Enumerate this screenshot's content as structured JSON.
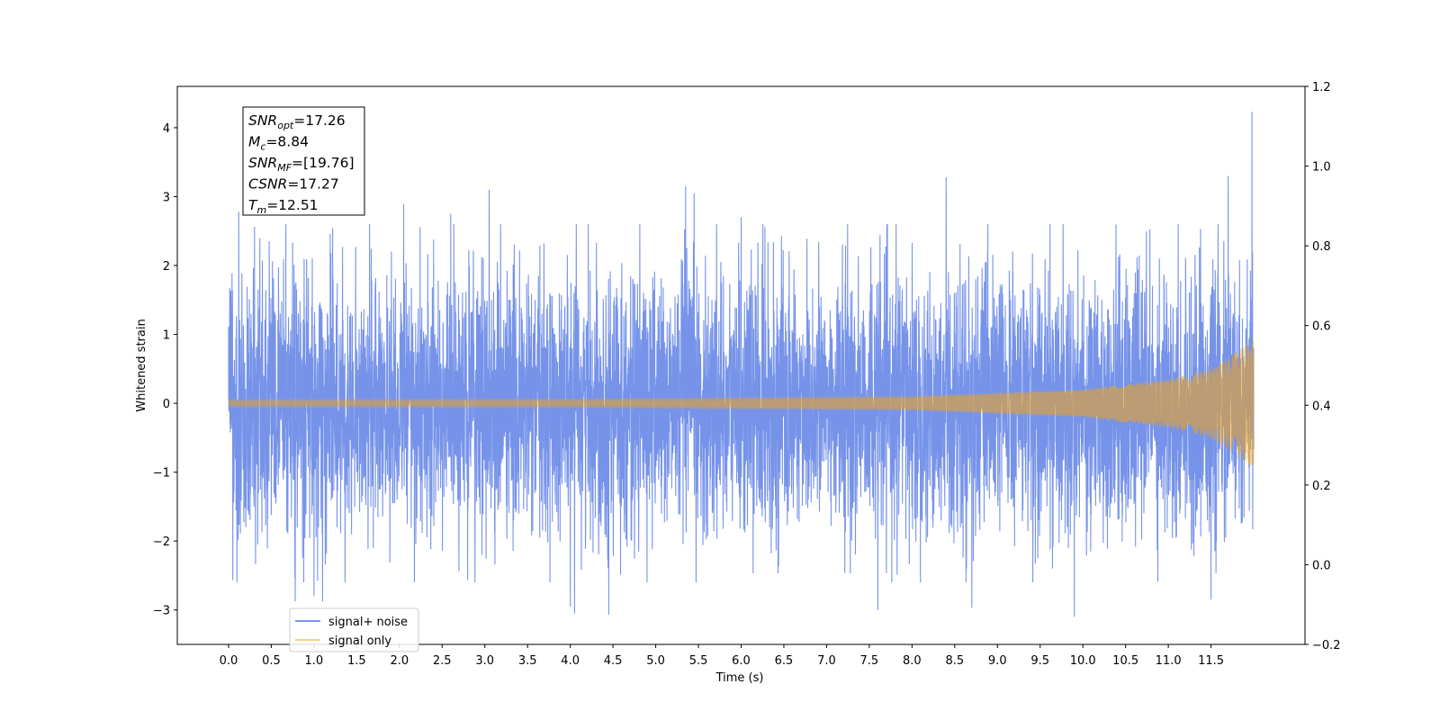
{
  "chart_data": {
    "type": "line",
    "xlabel": "Time (s)",
    "ylabel": "Whitened strain",
    "xlim": [
      -0.6,
      12.6
    ],
    "ylim": [
      -3.5,
      4.6
    ],
    "y2lim": [
      -0.2,
      1.2
    ],
    "x_ticks": [
      0.0,
      0.5,
      1.0,
      1.5,
      2.0,
      2.5,
      3.0,
      3.5,
      4.0,
      4.5,
      5.0,
      5.5,
      6.0,
      6.5,
      7.0,
      7.5,
      8.0,
      8.5,
      9.0,
      9.5,
      10.0,
      10.5,
      11.0,
      11.5
    ],
    "x_tick_labels": [
      "0.0",
      "0.5",
      "1.0",
      "1.5",
      "2.0",
      "2.5",
      "3.0",
      "3.5",
      "4.0",
      "4.5",
      "5.0",
      "5.5",
      "6.0",
      "6.5",
      "7.0",
      "7.5",
      "8.0",
      "8.5",
      "9.0",
      "9.5",
      "10.0",
      "10.5",
      "11.0",
      "11.5"
    ],
    "y_ticks": [
      -3,
      -2,
      -1,
      0,
      1,
      2,
      3,
      4
    ],
    "y_tick_labels": [
      "−3",
      "−2",
      "−1",
      "0",
      "1",
      "2",
      "3",
      "4"
    ],
    "y2_ticks": [
      -0.2,
      0.0,
      0.2,
      0.4,
      0.6,
      0.8,
      1.0,
      1.2
    ],
    "y2_tick_labels": [
      "−0.2",
      "0.0",
      "0.2",
      "0.4",
      "0.6",
      "0.8",
      "1.0",
      "1.2"
    ],
    "time_range": [
      0.0,
      12.0
    ],
    "series": [
      {
        "name": "signal+ noise",
        "color": "#4169e1",
        "typical_amplitude": 1.5,
        "extreme_max": 4.23,
        "extreme_min": -3.1,
        "peaks": [
          [
            0.12,
            2.78
          ],
          [
            0.75,
            2.33
          ],
          [
            2.05,
            2.89
          ],
          [
            2.6,
            2.75
          ],
          [
            3.05,
            3.1
          ],
          [
            5.35,
            3.15
          ],
          [
            5.45,
            3.05
          ],
          [
            6.0,
            2.7
          ],
          [
            8.4,
            3.28
          ],
          [
            11.7,
            3.3
          ],
          [
            11.98,
            4.23
          ]
        ],
        "troughs": [
          [
            0.05,
            -2.57
          ],
          [
            0.78,
            -2.88
          ],
          [
            1.0,
            -2.8
          ],
          [
            1.1,
            -2.88
          ],
          [
            4.0,
            -2.95
          ],
          [
            4.05,
            -3.05
          ],
          [
            4.45,
            -3.07
          ],
          [
            7.6,
            -3.0
          ],
          [
            8.7,
            -2.97
          ],
          [
            9.9,
            -3.1
          ],
          [
            11.5,
            -2.85
          ]
        ]
      },
      {
        "name": "signal only",
        "color": "#ffa500",
        "envelope": [
          [
            0.0,
            0.05
          ],
          [
            4.0,
            0.06
          ],
          [
            8.0,
            0.1
          ],
          [
            10.0,
            0.2
          ],
          [
            11.0,
            0.35
          ],
          [
            11.5,
            0.5
          ],
          [
            12.0,
            0.93
          ]
        ]
      }
    ],
    "legend": {
      "position": "lower-left",
      "entries": [
        "signal+ noise",
        "signal only"
      ]
    },
    "annotation_box": {
      "position": "upper-left",
      "lines": [
        {
          "sym": "SNR",
          "sub": "opt",
          "text": "=17.26"
        },
        {
          "sym": "M",
          "sub": "c",
          "text": "=8.84"
        },
        {
          "sym": "SNR",
          "sub": "MF",
          "text": "=[19.76]"
        },
        {
          "sym": "CSNR",
          "sub": "",
          "text": "=17.27"
        },
        {
          "sym": "T",
          "sub": "m",
          "text": "=12.51"
        }
      ]
    },
    "grid": false
  }
}
